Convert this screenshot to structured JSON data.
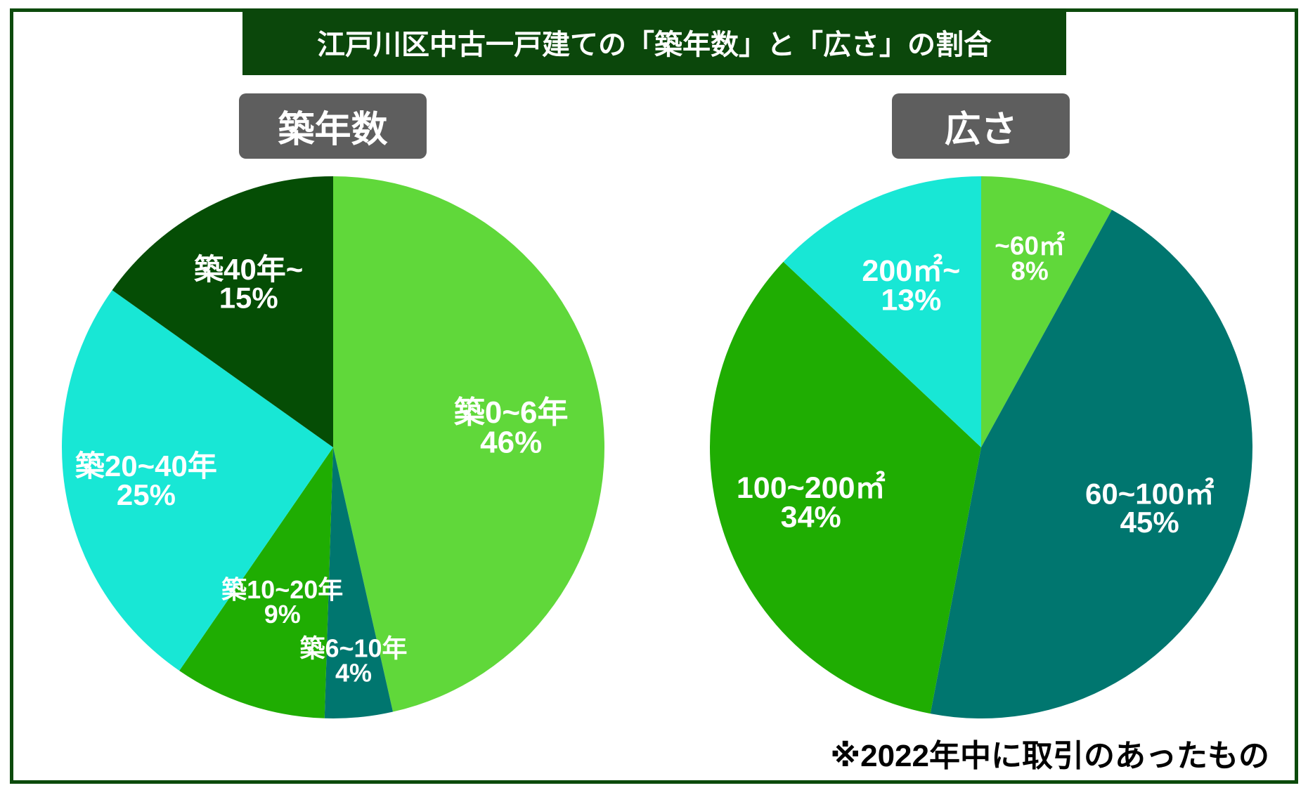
{
  "title": "江戸川区中古一戸建ての「築年数」と「広さ」の割合",
  "footnote": "※2022年中に取引のあったもの",
  "theme": {
    "frame": "#0c4a0c",
    "title_bg": "#0b470b",
    "title_text": "#ffffff",
    "chart_title_bg": "#5e5e5e",
    "chart_title_text": "#ffffff",
    "slice_label_text": "#ffffff",
    "footnote_text": "#000000"
  },
  "chart_data": [
    {
      "type": "pie",
      "title": "築年数",
      "categories": [
        "築0~6年",
        "築6~10年",
        "築10~20年",
        "築20~40年",
        "築40年~"
      ],
      "values": [
        46,
        4,
        9,
        25,
        15
      ],
      "value_labels": [
        "46%",
        "4%",
        "9%",
        "25%",
        "15%"
      ],
      "colors": [
        "#60d83a",
        "#00766f",
        "#1fad02",
        "#18e7d5",
        "#054d05"
      ]
    },
    {
      "type": "pie",
      "title": "広さ",
      "categories": [
        "~60㎡",
        "60~100㎡",
        "100~200㎡",
        "200㎡~"
      ],
      "values": [
        8,
        45,
        34,
        13
      ],
      "value_labels": [
        "8%",
        "45%",
        "34%",
        "13%"
      ],
      "colors": [
        "#60d83a",
        "#00766f",
        "#1fad02",
        "#18e7d5"
      ]
    }
  ]
}
